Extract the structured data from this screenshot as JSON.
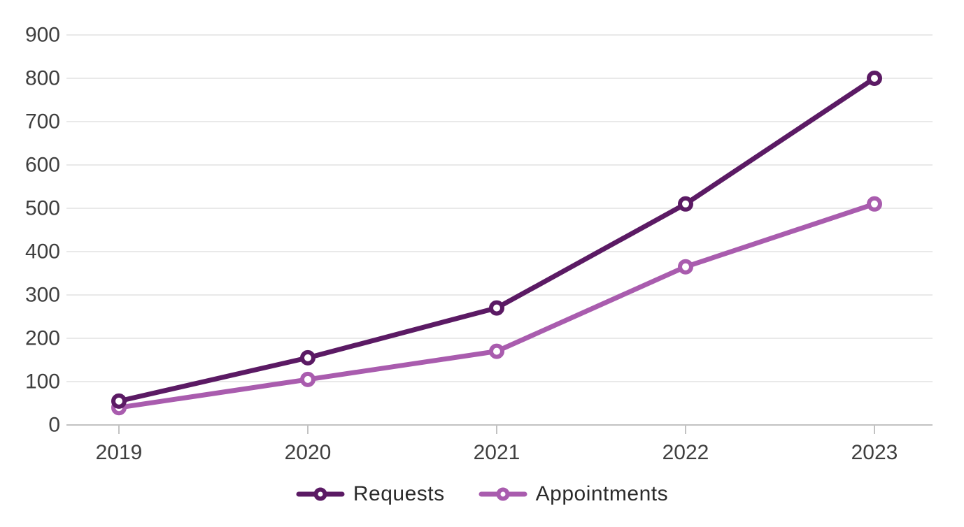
{
  "chart_data": {
    "type": "line",
    "categories": [
      "2019",
      "2020",
      "2021",
      "2022",
      "2023"
    ],
    "series": [
      {
        "name": "Requests",
        "color": "#5B1A64",
        "values": [
          55,
          155,
          270,
          510,
          800
        ]
      },
      {
        "name": "Appointments",
        "color": "#A95CAE",
        "values": [
          40,
          105,
          170,
          365,
          510
        ]
      }
    ],
    "title": "",
    "xlabel": "",
    "ylabel": "",
    "ylim": [
      0,
      900
    ],
    "ytick_step": 100,
    "grid": "horizontal",
    "legend_position": "bottom-center",
    "marker": "open-circle"
  },
  "colors": {
    "background": "#ffffff",
    "gridline": "#e2e2e2",
    "axis_line": "#c2c2c2",
    "tick_mark": "#c2c2c2",
    "axis_label": "#3f3f3f",
    "legend_text": "#2b2b2b"
  }
}
